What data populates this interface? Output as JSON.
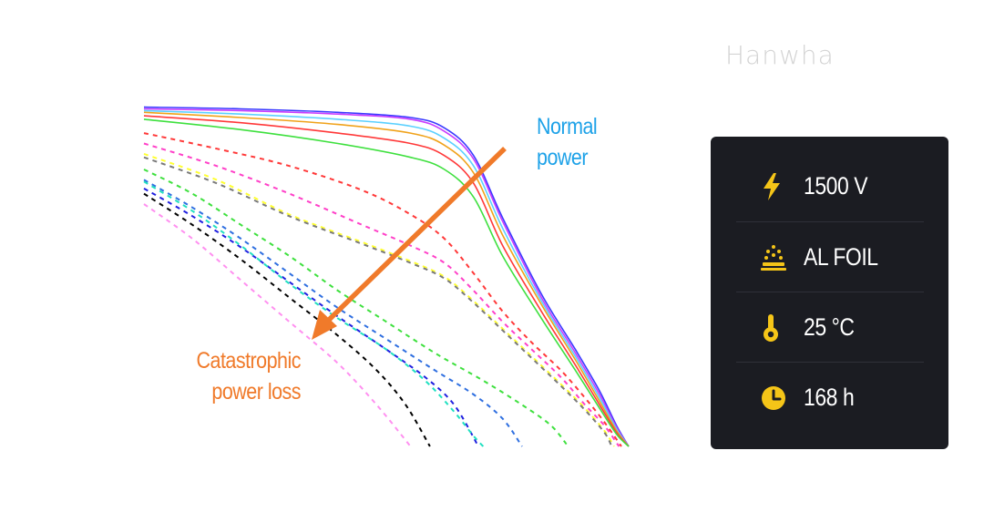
{
  "brand": "Hanwha",
  "colors": {
    "arrow": "#f07a2a",
    "normal_text": "#1ea2e8",
    "catastrophic_text": "#f07a2a",
    "panel_bg": "#1b1c22",
    "icon": "#f5c518"
  },
  "annotations": {
    "normal": [
      "Normal",
      "power"
    ],
    "catastrophic": [
      "Catastrophic",
      "power loss"
    ]
  },
  "conditions": [
    {
      "icon": "lightning-icon",
      "label": "1500 V"
    },
    {
      "icon": "foil-icon",
      "label": "AL FOIL"
    },
    {
      "icon": "thermometer-icon",
      "label": "25 °C"
    },
    {
      "icon": "clock-icon",
      "label": "168 h"
    }
  ],
  "chart_data": {
    "type": "line",
    "title": "",
    "xlabel": "",
    "ylabel": "",
    "grid": false,
    "legend": "none",
    "x_range": [
      0,
      1
    ],
    "y_range": [
      0,
      1
    ],
    "series": [
      {
        "style": "solid",
        "color": "#3a3aff",
        "points": [
          [
            0,
            0.98
          ],
          [
            0.2,
            0.975
          ],
          [
            0.4,
            0.965
          ],
          [
            0.55,
            0.95
          ],
          [
            0.62,
            0.92
          ],
          [
            0.68,
            0.84
          ],
          [
            0.74,
            0.66
          ],
          [
            0.82,
            0.44
          ],
          [
            0.89,
            0.28
          ],
          [
            0.94,
            0.16
          ],
          [
            0.975,
            0.06
          ],
          [
            1.0,
            0.0
          ]
        ]
      },
      {
        "style": "solid",
        "color": "#c83cff",
        "points": [
          [
            0,
            0.975
          ],
          [
            0.2,
            0.97
          ],
          [
            0.4,
            0.96
          ],
          [
            0.55,
            0.945
          ],
          [
            0.62,
            0.91
          ],
          [
            0.68,
            0.83
          ],
          [
            0.74,
            0.65
          ],
          [
            0.82,
            0.43
          ],
          [
            0.89,
            0.27
          ],
          [
            0.94,
            0.15
          ],
          [
            0.975,
            0.055
          ],
          [
            1.0,
            0.0
          ]
        ]
      },
      {
        "style": "solid",
        "color": "#5ad0ff",
        "points": [
          [
            0,
            0.97
          ],
          [
            0.2,
            0.96
          ],
          [
            0.4,
            0.945
          ],
          [
            0.55,
            0.925
          ],
          [
            0.62,
            0.89
          ],
          [
            0.68,
            0.81
          ],
          [
            0.74,
            0.63
          ],
          [
            0.82,
            0.42
          ],
          [
            0.89,
            0.26
          ],
          [
            0.94,
            0.14
          ],
          [
            0.975,
            0.05
          ],
          [
            1.0,
            0.0
          ]
        ]
      },
      {
        "style": "solid",
        "color": "#f0a21a",
        "points": [
          [
            0,
            0.965
          ],
          [
            0.2,
            0.95
          ],
          [
            0.4,
            0.93
          ],
          [
            0.55,
            0.905
          ],
          [
            0.62,
            0.87
          ],
          [
            0.68,
            0.79
          ],
          [
            0.74,
            0.61
          ],
          [
            0.82,
            0.41
          ],
          [
            0.89,
            0.25
          ],
          [
            0.94,
            0.13
          ],
          [
            0.975,
            0.045
          ],
          [
            1.0,
            0.0
          ]
        ]
      },
      {
        "style": "solid",
        "color": "#ff3838",
        "points": [
          [
            0,
            0.955
          ],
          [
            0.2,
            0.935
          ],
          [
            0.4,
            0.905
          ],
          [
            0.55,
            0.875
          ],
          [
            0.62,
            0.84
          ],
          [
            0.68,
            0.76
          ],
          [
            0.74,
            0.58
          ],
          [
            0.82,
            0.39
          ],
          [
            0.89,
            0.235
          ],
          [
            0.94,
            0.12
          ],
          [
            0.975,
            0.04
          ],
          [
            1.0,
            0.0
          ]
        ]
      },
      {
        "style": "solid",
        "color": "#3ee03e",
        "points": [
          [
            0,
            0.945
          ],
          [
            0.2,
            0.915
          ],
          [
            0.4,
            0.875
          ],
          [
            0.55,
            0.835
          ],
          [
            0.62,
            0.8
          ],
          [
            0.68,
            0.72
          ],
          [
            0.74,
            0.55
          ],
          [
            0.82,
            0.37
          ],
          [
            0.89,
            0.22
          ],
          [
            0.94,
            0.11
          ],
          [
            0.975,
            0.035
          ],
          [
            1.0,
            0.0
          ]
        ]
      },
      {
        "style": "dashed",
        "color": "#ff3838",
        "points": [
          [
            0,
            0.905
          ],
          [
            0.15,
            0.86
          ],
          [
            0.3,
            0.81
          ],
          [
            0.45,
            0.74
          ],
          [
            0.55,
            0.67
          ],
          [
            0.62,
            0.6
          ],
          [
            0.68,
            0.5
          ],
          [
            0.74,
            0.39
          ],
          [
            0.8,
            0.3
          ],
          [
            0.86,
            0.22
          ],
          [
            0.91,
            0.14
          ],
          [
            0.95,
            0.07
          ],
          [
            0.985,
            0.0
          ]
        ]
      },
      {
        "style": "dashed",
        "color": "#ff40c8",
        "points": [
          [
            0,
            0.875
          ],
          [
            0.15,
            0.81
          ],
          [
            0.3,
            0.73
          ],
          [
            0.45,
            0.64
          ],
          [
            0.55,
            0.58
          ],
          [
            0.62,
            0.53
          ],
          [
            0.68,
            0.45
          ],
          [
            0.74,
            0.36
          ],
          [
            0.8,
            0.28
          ],
          [
            0.86,
            0.2
          ],
          [
            0.91,
            0.12
          ],
          [
            0.95,
            0.06
          ],
          [
            0.98,
            0.0
          ]
        ]
      },
      {
        "style": "dashed",
        "color": "#ffff30",
        "points": [
          [
            0,
            0.845
          ],
          [
            0.15,
            0.77
          ],
          [
            0.3,
            0.67
          ],
          [
            0.45,
            0.59
          ],
          [
            0.55,
            0.535
          ],
          [
            0.62,
            0.49
          ],
          [
            0.68,
            0.42
          ],
          [
            0.74,
            0.34
          ],
          [
            0.8,
            0.26
          ],
          [
            0.86,
            0.18
          ],
          [
            0.91,
            0.11
          ],
          [
            0.95,
            0.045
          ],
          [
            0.97,
            0.0
          ]
        ]
      },
      {
        "style": "dashed",
        "color": "#7a7a7a",
        "points": [
          [
            0,
            0.835
          ],
          [
            0.15,
            0.76
          ],
          [
            0.3,
            0.665
          ],
          [
            0.45,
            0.585
          ],
          [
            0.55,
            0.53
          ],
          [
            0.62,
            0.485
          ],
          [
            0.68,
            0.415
          ],
          [
            0.74,
            0.335
          ],
          [
            0.8,
            0.255
          ],
          [
            0.86,
            0.175
          ],
          [
            0.91,
            0.105
          ],
          [
            0.95,
            0.04
          ],
          [
            0.965,
            0.0
          ]
        ]
      },
      {
        "style": "dashed",
        "color": "#3ee03e",
        "points": [
          [
            0,
            0.8
          ],
          [
            0.1,
            0.73
          ],
          [
            0.2,
            0.64
          ],
          [
            0.3,
            0.55
          ],
          [
            0.4,
            0.45
          ],
          [
            0.5,
            0.36
          ],
          [
            0.6,
            0.27
          ],
          [
            0.7,
            0.19
          ],
          [
            0.78,
            0.12
          ],
          [
            0.84,
            0.06
          ],
          [
            0.875,
            0.0
          ]
        ]
      },
      {
        "style": "dashed",
        "color": "#2f6fe0",
        "points": [
          [
            0,
            0.77
          ],
          [
            0.1,
            0.69
          ],
          [
            0.2,
            0.6
          ],
          [
            0.3,
            0.5
          ],
          [
            0.4,
            0.4
          ],
          [
            0.5,
            0.31
          ],
          [
            0.6,
            0.22
          ],
          [
            0.68,
            0.15
          ],
          [
            0.74,
            0.08
          ],
          [
            0.78,
            0.0
          ]
        ]
      },
      {
        "style": "dashed",
        "color": "#2020e0",
        "points": [
          [
            0,
            0.745
          ],
          [
            0.1,
            0.665
          ],
          [
            0.2,
            0.575
          ],
          [
            0.3,
            0.475
          ],
          [
            0.4,
            0.375
          ],
          [
            0.5,
            0.28
          ],
          [
            0.58,
            0.2
          ],
          [
            0.64,
            0.12
          ],
          [
            0.69,
            0.0
          ]
        ]
      },
      {
        "style": "dashed",
        "color": "#20e0c0",
        "points": [
          [
            0,
            0.765
          ],
          [
            0.1,
            0.68
          ],
          [
            0.2,
            0.58
          ],
          [
            0.3,
            0.47
          ],
          [
            0.4,
            0.37
          ],
          [
            0.5,
            0.28
          ],
          [
            0.58,
            0.19
          ],
          [
            0.64,
            0.1
          ],
          [
            0.68,
            0.03
          ],
          [
            0.7,
            0.0
          ]
        ]
      },
      {
        "style": "dashed",
        "color": "#000000",
        "points": [
          [
            0,
            0.73
          ],
          [
            0.1,
            0.64
          ],
          [
            0.2,
            0.54
          ],
          [
            0.3,
            0.43
          ],
          [
            0.4,
            0.32
          ],
          [
            0.48,
            0.22
          ],
          [
            0.54,
            0.12
          ],
          [
            0.59,
            0.0
          ]
        ]
      },
      {
        "style": "dashed",
        "color": "#ff90f0",
        "points": [
          [
            0,
            0.7
          ],
          [
            0.1,
            0.6
          ],
          [
            0.2,
            0.48
          ],
          [
            0.3,
            0.36
          ],
          [
            0.4,
            0.24
          ],
          [
            0.48,
            0.12
          ],
          [
            0.55,
            0.0
          ]
        ]
      }
    ]
  }
}
